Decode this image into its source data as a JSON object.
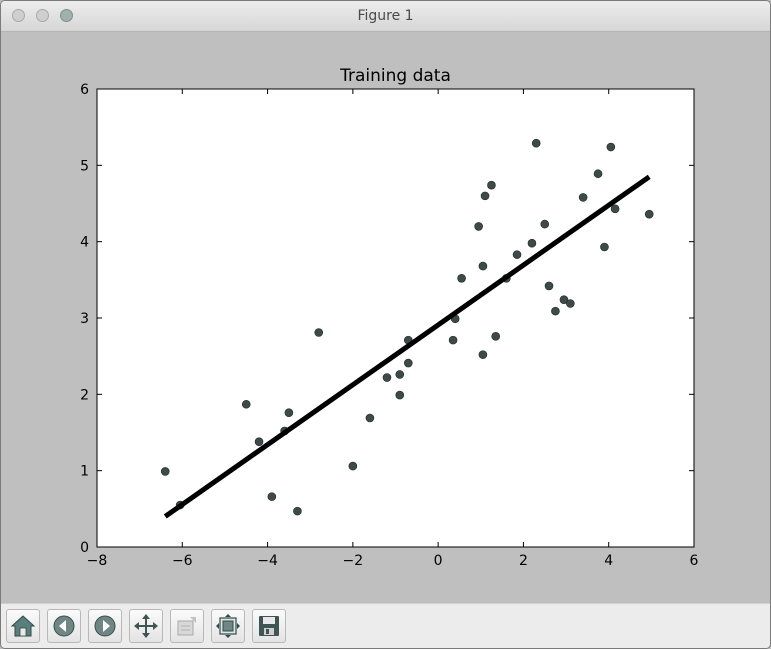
{
  "window": {
    "title": "Figure 1"
  },
  "toolbar": {
    "buttons": [
      {
        "name": "home-button",
        "icon": "home-icon"
      },
      {
        "name": "back-button",
        "icon": "back-arrow-icon"
      },
      {
        "name": "forward-button",
        "icon": "forward-arrow-icon"
      },
      {
        "name": "pan-button",
        "icon": "move-arrows-icon"
      },
      {
        "name": "zoom-button",
        "icon": "zoom-rect-icon"
      },
      {
        "name": "subplots-button",
        "icon": "subplots-icon"
      },
      {
        "name": "save-button",
        "icon": "floppy-disk-icon"
      }
    ]
  },
  "chart_data": {
    "type": "scatter",
    "title": "Training data",
    "xlabel": "",
    "ylabel": "",
    "xlim": [
      -8,
      6
    ],
    "ylim": [
      0,
      6
    ],
    "xticks": [
      -8,
      -6,
      -4,
      -2,
      0,
      2,
      4,
      6
    ],
    "yticks": [
      0,
      1,
      2,
      3,
      4,
      5,
      6
    ],
    "grid": false,
    "points": [
      [
        -6.4,
        0.99
      ],
      [
        -6.05,
        0.55
      ],
      [
        -4.5,
        1.87
      ],
      [
        -4.2,
        1.38
      ],
      [
        -3.9,
        0.66
      ],
      [
        -3.6,
        1.52
      ],
      [
        -3.5,
        1.76
      ],
      [
        -3.3,
        0.47
      ],
      [
        -2.8,
        2.81
      ],
      [
        -2.0,
        1.06
      ],
      [
        -1.6,
        1.69
      ],
      [
        -1.2,
        2.22
      ],
      [
        -0.9,
        2.26
      ],
      [
        -0.9,
        1.99
      ],
      [
        -0.7,
        2.71
      ],
      [
        -0.7,
        2.41
      ],
      [
        0.35,
        2.71
      ],
      [
        0.4,
        2.99
      ],
      [
        0.55,
        3.52
      ],
      [
        0.95,
        4.2
      ],
      [
        1.05,
        3.68
      ],
      [
        1.05,
        2.52
      ],
      [
        1.1,
        4.6
      ],
      [
        1.25,
        4.74
      ],
      [
        1.35,
        2.76
      ],
      [
        1.6,
        3.52
      ],
      [
        1.85,
        3.83
      ],
      [
        2.2,
        3.98
      ],
      [
        2.3,
        5.29
      ],
      [
        2.5,
        4.23
      ],
      [
        2.6,
        3.42
      ],
      [
        2.75,
        3.09
      ],
      [
        2.95,
        3.24
      ],
      [
        3.1,
        3.19
      ],
      [
        3.4,
        4.58
      ],
      [
        3.75,
        4.89
      ],
      [
        3.9,
        3.93
      ],
      [
        4.05,
        5.24
      ],
      [
        4.15,
        4.43
      ],
      [
        4.95,
        4.36
      ]
    ],
    "fit_line": {
      "x": [
        -6.4,
        4.95
      ],
      "y": [
        0.4,
        4.85
      ],
      "color": "#000000"
    },
    "marker_color": "#3d4a48"
  }
}
